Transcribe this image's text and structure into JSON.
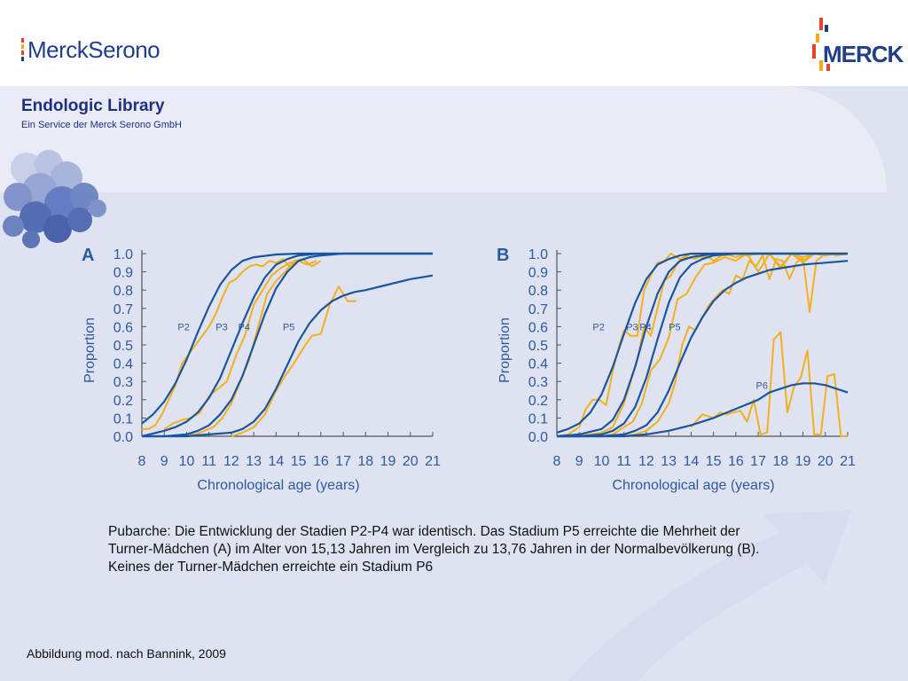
{
  "header": {
    "logo_left_text": "MerckSerono",
    "logo_right_text": "MERCK",
    "library_title": "Endologic Library",
    "library_subtitle": "Ein Service der Merck Serono GmbH"
  },
  "caption": {
    "line1": "Pubarche: Die Entwicklung der Stadien P2-P4 war identisch. Das Stadium P5 erreichte die Mehrheit der",
    "line2": "Turner-Mädchen (A) im Alter von 15,13 Jahren im Vergleich zu 13,76 Jahren in der Normalbevölkerung (B).",
    "line3": "Keines der Turner-Mädchen erreichte ein Stadium P6"
  },
  "footer": {
    "citation": "Abbildung mod. nach Bannink, 2009"
  },
  "colors": {
    "fit_line": "#1a56a0",
    "observed_line": "#f2b01e",
    "axis": "#555555",
    "text_blue": "#2c5aa0"
  },
  "chart_data": [
    {
      "type": "line",
      "panel_label": "A",
      "xlabel": "Chronological age (years)",
      "ylabel": "Proportion",
      "xlim": [
        8,
        21
      ],
      "ylim": [
        0,
        1
      ],
      "x_ticks": [
        "8",
        "9",
        "10",
        "11",
        "12",
        "13",
        "14",
        "15",
        "16",
        "17",
        "18",
        "19",
        "20",
        "21"
      ],
      "y_ticks": [
        "0.0",
        "0.1",
        "0.2",
        "0.3",
        "0.4",
        "0.5",
        "0.6",
        "0.7",
        "0.8",
        "0.9",
        "1.0"
      ],
      "stage_labels": [
        {
          "text": "P2",
          "x": 9.6,
          "y": 0.58
        },
        {
          "text": "P3",
          "x": 11.3,
          "y": 0.58
        },
        {
          "text": "P4",
          "x": 12.3,
          "y": 0.58
        },
        {
          "text": "P5",
          "x": 14.3,
          "y": 0.58
        }
      ],
      "series": [
        {
          "name": "P2",
          "kind": "fit",
          "x": [
            8,
            8.5,
            9,
            9.5,
            10,
            10.5,
            11,
            11.5,
            12,
            12.5,
            13,
            14,
            15,
            16,
            17,
            18,
            19,
            20,
            21
          ],
          "values": [
            0.07,
            0.12,
            0.19,
            0.29,
            0.42,
            0.57,
            0.71,
            0.83,
            0.91,
            0.96,
            0.98,
            0.995,
            1.0,
            1.0,
            1.0,
            1.0,
            1.0,
            1.0,
            1.0
          ]
        },
        {
          "name": "P3",
          "kind": "fit",
          "x": [
            8,
            9,
            9.5,
            10,
            10.5,
            11,
            11.5,
            12,
            12.5,
            13,
            13.5,
            14,
            14.5,
            15,
            16,
            17,
            18,
            19,
            20,
            21
          ],
          "values": [
            0.0,
            0.03,
            0.05,
            0.08,
            0.13,
            0.21,
            0.32,
            0.47,
            0.62,
            0.76,
            0.87,
            0.94,
            0.97,
            0.99,
            1.0,
            1.0,
            1.0,
            1.0,
            1.0,
            1.0
          ]
        },
        {
          "name": "P4",
          "kind": "fit",
          "x": [
            8,
            9,
            10,
            10.5,
            11,
            11.5,
            12,
            12.5,
            13,
            13.5,
            14,
            14.5,
            15,
            15.5,
            16,
            17,
            18,
            19,
            20,
            21
          ],
          "values": [
            0.0,
            0.0,
            0.01,
            0.03,
            0.06,
            0.12,
            0.2,
            0.33,
            0.5,
            0.67,
            0.81,
            0.9,
            0.96,
            0.98,
            0.99,
            1.0,
            1.0,
            1.0,
            1.0,
            1.0
          ]
        },
        {
          "name": "P5",
          "kind": "fit",
          "x": [
            8,
            10,
            11,
            12,
            12.5,
            13,
            13.5,
            14,
            14.5,
            15,
            15.5,
            16,
            16.5,
            17,
            17.5,
            18,
            19,
            20,
            21
          ],
          "values": [
            0.0,
            0.0,
            0.01,
            0.02,
            0.04,
            0.08,
            0.15,
            0.26,
            0.39,
            0.52,
            0.62,
            0.69,
            0.74,
            0.77,
            0.79,
            0.8,
            0.83,
            0.86,
            0.88
          ]
        },
        {
          "name": "P2 observed",
          "kind": "observed",
          "x": [
            8,
            8.3,
            8.6,
            8.9,
            9.2,
            9.5,
            9.8,
            10.1,
            10.4,
            10.7,
            11,
            11.3,
            11.6,
            11.9,
            12.2,
            12.5,
            12.8,
            13.1,
            13.4,
            13.7,
            14,
            14.3,
            14.6,
            14.9,
            15.2
          ],
          "values": [
            0.04,
            0.04,
            0.06,
            0.12,
            0.2,
            0.28,
            0.4,
            0.45,
            0.5,
            0.55,
            0.6,
            0.67,
            0.76,
            0.84,
            0.86,
            0.9,
            0.93,
            0.94,
            0.93,
            0.96,
            0.95,
            0.97,
            0.93,
            0.96,
            0.97
          ]
        },
        {
          "name": "P3 observed",
          "kind": "observed",
          "x": [
            9,
            9.4,
            9.8,
            10.2,
            10.6,
            11,
            11.4,
            11.8,
            12.2,
            12.6,
            13,
            13.4,
            13.8,
            14.2,
            14.6,
            15,
            15.4,
            15.8
          ],
          "values": [
            0.04,
            0.07,
            0.09,
            0.1,
            0.13,
            0.22,
            0.26,
            0.3,
            0.44,
            0.55,
            0.72,
            0.8,
            0.88,
            0.92,
            0.95,
            0.96,
            0.94,
            0.96
          ]
        },
        {
          "name": "P4 observed",
          "kind": "observed",
          "x": [
            10,
            10.4,
            10.8,
            11.2,
            11.6,
            12,
            12.4,
            12.8,
            13.2,
            13.6,
            14,
            14.4,
            14.8,
            15.2,
            15.6,
            16
          ],
          "values": [
            0.01,
            0.01,
            0.03,
            0.05,
            0.1,
            0.18,
            0.3,
            0.42,
            0.6,
            0.78,
            0.85,
            0.9,
            0.96,
            0.97,
            0.93,
            0.96
          ]
        },
        {
          "name": "P5 observed",
          "kind": "observed",
          "x": [
            12,
            12.5,
            13,
            13.5,
            14,
            14.4,
            14.8,
            15.2,
            15.6,
            16,
            16.4,
            16.8,
            17.2,
            17.6
          ],
          "values": [
            0.0,
            0.02,
            0.05,
            0.12,
            0.25,
            0.33,
            0.4,
            0.48,
            0.55,
            0.56,
            0.72,
            0.82,
            0.74,
            0.74
          ]
        }
      ]
    },
    {
      "type": "line",
      "panel_label": "B",
      "xlabel": "Chronological age (years)",
      "ylabel": "Proportion",
      "xlim": [
        8,
        21
      ],
      "ylim": [
        0,
        1
      ],
      "x_ticks": [
        "8",
        "9",
        "10",
        "11",
        "12",
        "13",
        "14",
        "15",
        "16",
        "17",
        "18",
        "19",
        "20",
        "21"
      ],
      "y_ticks": [
        "0.0",
        "0.1",
        "0.2",
        "0.3",
        "0.4",
        "0.5",
        "0.6",
        "0.7",
        "0.8",
        "0.9",
        "1.0"
      ],
      "stage_labels": [
        {
          "text": "P2",
          "x": 9.6,
          "y": 0.58
        },
        {
          "text": "P3",
          "x": 11.1,
          "y": 0.58
        },
        {
          "text": "P4",
          "x": 11.7,
          "y": 0.58
        },
        {
          "text": "P5",
          "x": 13.0,
          "y": 0.58
        },
        {
          "text": "P6",
          "x": 16.9,
          "y": 0.26
        }
      ],
      "series": [
        {
          "name": "P2",
          "kind": "fit",
          "x": [
            8,
            8.5,
            9,
            9.5,
            10,
            10.5,
            11,
            11.5,
            12,
            12.5,
            13,
            13.5,
            14,
            15,
            16,
            17,
            18,
            19,
            20,
            21
          ],
          "values": [
            0.02,
            0.04,
            0.07,
            0.13,
            0.23,
            0.38,
            0.56,
            0.73,
            0.86,
            0.94,
            0.97,
            0.99,
            1.0,
            1.0,
            1.0,
            1.0,
            1.0,
            1.0,
            1.0,
            1.0
          ]
        },
        {
          "name": "P3",
          "kind": "fit",
          "x": [
            8,
            9,
            10,
            10.5,
            11,
            11.5,
            12,
            12.5,
            13,
            13.5,
            14,
            14.5,
            15,
            16,
            17,
            18,
            19,
            20,
            21
          ],
          "values": [
            0.0,
            0.01,
            0.04,
            0.09,
            0.2,
            0.38,
            0.6,
            0.78,
            0.9,
            0.96,
            0.98,
            0.99,
            1.0,
            1.0,
            1.0,
            1.0,
            1.0,
            1.0,
            1.0
          ]
        },
        {
          "name": "P4",
          "kind": "fit",
          "x": [
            8,
            9,
            10,
            10.5,
            11,
            11.5,
            12,
            12.5,
            13,
            13.5,
            14,
            14.5,
            15,
            16,
            17,
            18,
            19,
            20,
            21
          ],
          "values": [
            0.0,
            0.0,
            0.01,
            0.03,
            0.07,
            0.16,
            0.32,
            0.53,
            0.73,
            0.87,
            0.94,
            0.97,
            0.99,
            1.0,
            1.0,
            1.0,
            1.0,
            1.0,
            1.0
          ]
        },
        {
          "name": "P5",
          "kind": "fit",
          "x": [
            8,
            10,
            11,
            11.5,
            12,
            12.5,
            13,
            13.5,
            14,
            14.5,
            15,
            15.5,
            16,
            16.5,
            17,
            17.5,
            18,
            19,
            20,
            21
          ],
          "values": [
            0.0,
            0.0,
            0.01,
            0.03,
            0.06,
            0.13,
            0.25,
            0.4,
            0.54,
            0.65,
            0.74,
            0.8,
            0.84,
            0.87,
            0.89,
            0.91,
            0.92,
            0.94,
            0.95,
            0.96
          ]
        },
        {
          "name": "P6",
          "kind": "fit",
          "x": [
            8,
            10,
            11,
            12,
            13,
            14,
            15,
            16,
            17,
            17.5,
            18,
            18.5,
            19,
            19.5,
            20,
            20.5,
            21
          ],
          "values": [
            0.0,
            0.0,
            0.0,
            0.01,
            0.03,
            0.06,
            0.1,
            0.15,
            0.2,
            0.24,
            0.26,
            0.28,
            0.29,
            0.29,
            0.28,
            0.26,
            0.24
          ]
        },
        {
          "name": "P2 observed",
          "kind": "observed",
          "x": [
            8,
            8.5,
            9,
            9.3,
            9.6,
            9.9,
            10.2,
            10.5,
            10.8,
            11,
            11.3,
            11.6,
            11.9,
            12.2,
            12.5,
            12.8,
            13.1,
            13.5,
            14,
            14.5,
            15,
            15.5,
            16,
            16.5,
            17,
            17.5,
            18,
            18.5,
            19,
            19.5,
            20,
            20.5,
            21
          ],
          "values": [
            0.0,
            0.01,
            0.05,
            0.15,
            0.2,
            0.2,
            0.17,
            0.36,
            0.5,
            0.58,
            0.55,
            0.55,
            0.8,
            0.88,
            0.95,
            0.96,
            1.0,
            0.97,
            1.0,
            0.98,
            1.0,
            0.99,
            1.0,
            0.99,
            1.0,
            1.0,
            1.0,
            1.0,
            0.98,
            1.0,
            1.0,
            1.0,
            1.0
          ]
        },
        {
          "name": "P3 observed",
          "kind": "observed",
          "x": [
            9,
            9.5,
            10,
            10.5,
            11,
            11.3,
            11.6,
            11.9,
            12.2,
            12.5,
            12.8,
            13.1,
            13.4,
            13.8,
            14.2,
            14.6,
            15,
            15.5,
            16,
            16.5,
            17,
            17.5,
            18,
            18.5,
            19,
            19.5,
            20,
            20.5,
            21
          ],
          "values": [
            0.0,
            0.01,
            0.02,
            0.05,
            0.18,
            0.3,
            0.42,
            0.6,
            0.55,
            0.7,
            0.85,
            0.88,
            0.95,
            0.98,
            0.97,
            1.0,
            0.96,
            1.0,
            0.98,
            1.0,
            0.9,
            1.0,
            0.92,
            1.0,
            0.96,
            1.0,
            1.0,
            1.0,
            1.0
          ]
        },
        {
          "name": "P4 observed",
          "kind": "observed",
          "x": [
            10,
            10.5,
            11,
            11.4,
            11.8,
            12.2,
            12.6,
            13,
            13.4,
            13.8,
            14.2,
            14.6,
            15,
            15.5,
            16,
            16.5,
            17,
            17.5,
            18,
            18.5,
            19,
            19.5,
            20,
            20.5,
            21
          ],
          "values": [
            0.0,
            0.01,
            0.05,
            0.08,
            0.18,
            0.36,
            0.42,
            0.54,
            0.75,
            0.78,
            0.87,
            0.94,
            0.95,
            0.98,
            0.96,
            1.0,
            0.9,
            1.0,
            0.93,
            1.0,
            0.95,
            1.0,
            0.99,
            1.0,
            1.0
          ]
        },
        {
          "name": "P5 observed",
          "kind": "observed",
          "x": [
            11,
            11.5,
            12,
            12.5,
            13,
            13.3,
            13.6,
            13.9,
            14.2,
            14.5,
            14.8,
            15.1,
            15.4,
            15.7,
            16,
            16.3,
            16.6,
            16.9,
            17.2,
            17.5,
            17.8,
            18.1,
            18.4,
            18.7,
            19,
            19.3,
            19.6,
            19.9,
            20.2,
            20.5,
            21
          ],
          "values": [
            0.0,
            0.01,
            0.03,
            0.08,
            0.18,
            0.3,
            0.5,
            0.6,
            0.58,
            0.65,
            0.72,
            0.76,
            0.8,
            0.78,
            0.88,
            0.86,
            0.96,
            0.93,
            0.99,
            0.86,
            0.97,
            0.96,
            0.86,
            0.95,
            0.98,
            0.68,
            0.96,
            0.99,
            1.0,
            0.99,
            1.0
          ]
        },
        {
          "name": "P6 observed",
          "kind": "observed",
          "x": [
            14,
            14.5,
            15,
            15.3,
            15.6,
            15.9,
            16.2,
            16.5,
            16.8,
            17.1,
            17.4,
            17.7,
            18,
            18.3,
            18.6,
            18.9,
            19.2,
            19.5,
            19.8,
            20.1,
            20.4,
            20.7,
            21
          ],
          "values": [
            0.05,
            0.12,
            0.1,
            0.13,
            0.12,
            0.13,
            0.14,
            0.08,
            0.2,
            0.01,
            0.02,
            0.53,
            0.57,
            0.13,
            0.27,
            0.32,
            0.47,
            0.01,
            0.01,
            0.33,
            0.34,
            0.0,
            0.0
          ]
        }
      ]
    }
  ]
}
